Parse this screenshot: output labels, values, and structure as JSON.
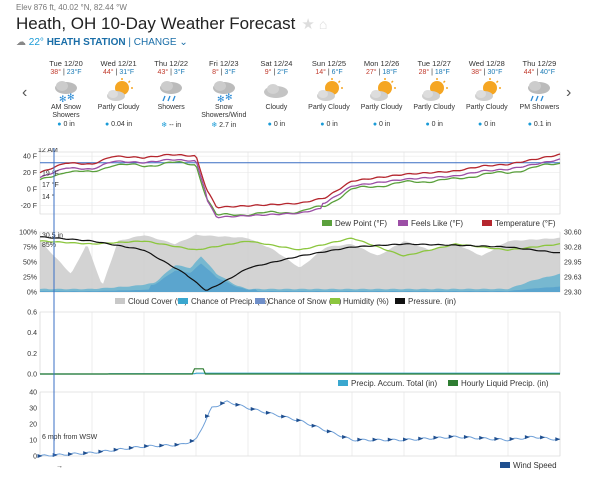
{
  "header": {
    "elevation": "Elev 876 ft, 40.02 °N, 82.44 °W",
    "title": "Heath, OH 10-Day Weather Forecast",
    "current_temp": "22°",
    "station": "HEATH STATION",
    "separator": "|",
    "change_label": "CHANGE"
  },
  "days": [
    {
      "date": "Tue 12/20",
      "hi": "38°",
      "lo": "23°F",
      "icon": "snow-icon",
      "cond": "AM Snow Showers",
      "precip": "0 in"
    },
    {
      "date": "Wed 12/21",
      "hi": "44°",
      "lo": "31°F",
      "icon": "partly-cloudy-icon",
      "cond": "Partly Cloudy",
      "precip": "0.04 in"
    },
    {
      "date": "Thu 12/22",
      "hi": "43°",
      "lo": "3°F",
      "icon": "rain-icon",
      "cond": "Showers",
      "precip": "-- in"
    },
    {
      "date": "Fri 12/23",
      "hi": "8°",
      "lo": "3°F",
      "icon": "snow-icon",
      "cond": "Snow Showers/Wind",
      "precip": "2.7 in"
    },
    {
      "date": "Sat 12/24",
      "hi": "9°",
      "lo": "2°F",
      "icon": "cloud-icon",
      "cond": "Cloudy",
      "precip": "0 in"
    },
    {
      "date": "Sun 12/25",
      "hi": "14°",
      "lo": "6°F",
      "icon": "partly-cloudy-icon",
      "cond": "Partly Cloudy",
      "precip": "0 in"
    },
    {
      "date": "Mon 12/26",
      "hi": "27°",
      "lo": "18°F",
      "icon": "partly-cloudy-icon",
      "cond": "Partly Cloudy",
      "precip": "0 in"
    },
    {
      "date": "Tue 12/27",
      "hi": "28°",
      "lo": "18°F",
      "icon": "partly-cloudy-icon",
      "cond": "Partly Cloudy",
      "precip": "0 in"
    },
    {
      "date": "Wed 12/28",
      "hi": "38°",
      "lo": "30°F",
      "icon": "partly-cloudy-icon",
      "cond": "Partly Cloudy",
      "precip": "0 in"
    },
    {
      "date": "Thu 12/29",
      "hi": "44°",
      "lo": "40°F",
      "icon": "rain-icon",
      "cond": "PM Showers",
      "precip": "0.1 in"
    }
  ],
  "charts": {
    "start_label": "12 AM",
    "temp": {
      "y_ticks": [
        "40 F",
        "20 F",
        "0 F",
        "-20 F"
      ],
      "cursor_labels": [
        "19 °F",
        "17 °F",
        "14 °"
      ],
      "legend": [
        "Dew Point (°F)",
        "Feels Like (°F)",
        "Temperature (°F)"
      ]
    },
    "cloud": {
      "y_ticks": [
        "100%",
        "75%",
        "50%",
        "25%",
        "0%"
      ],
      "right_ticks": [
        "30.60",
        "30.28",
        "29.95",
        "29.63",
        "29.30"
      ],
      "cursor_labels": [
        "30.5 in",
        "85%"
      ],
      "legend": [
        "Cloud Cover (%)",
        "Chance of Precip. (%)",
        "Chance of Snow (%)",
        "Humidity (%)",
        "Pressure. (in)"
      ]
    },
    "precip": {
      "y_ticks": [
        "0.6",
        "0.4",
        "0.2",
        "0.0"
      ],
      "legend": [
        "Precip. Accum. Total (in)",
        "Hourly Liquid Precip. (in)"
      ]
    },
    "wind": {
      "y_ticks": [
        "40",
        "30",
        "20",
        "10",
        "0"
      ],
      "cursor_label": "6 mph from WSW",
      "legend": [
        "Wind Speed"
      ]
    }
  },
  "colors": {
    "temperature": "#b5262e",
    "feels_like": "#9c4fa6",
    "dew_point": "#5aa03c",
    "cloud": "#c8c8c8",
    "precip_chance": "#3aa7cf",
    "snow_chance": "#6f8fc9",
    "humidity": "#8cc63f",
    "pressure": "#111111",
    "wind": "#1f4f8f",
    "accent": "#1a6ea8"
  }
}
